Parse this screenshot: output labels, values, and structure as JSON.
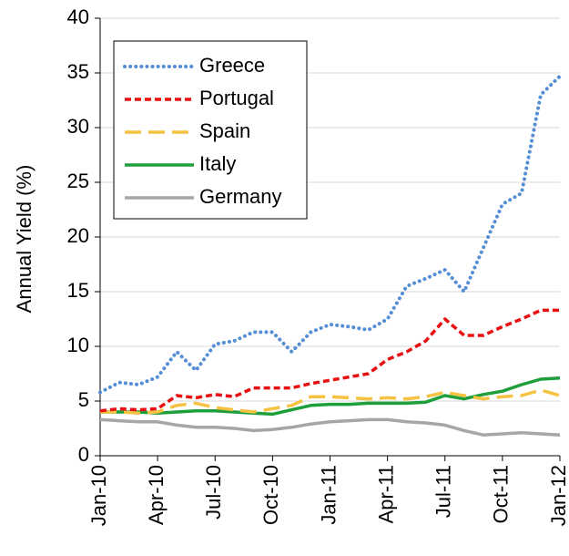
{
  "chart_data": {
    "type": "line",
    "y_label": "Annual Yield (%)",
    "x": [
      "2010-01",
      "2010-02",
      "2010-03",
      "2010-04",
      "2010-05",
      "2010-06",
      "2010-07",
      "2010-08",
      "2010-09",
      "2010-10",
      "2010-11",
      "2010-12",
      "2011-01",
      "2011-02",
      "2011-03",
      "2011-04",
      "2011-05",
      "2011-06",
      "2011-07",
      "2011-08",
      "2011-09",
      "2011-10",
      "2011-11",
      "2011-12",
      "2012-01"
    ],
    "xticks": [
      {
        "value": "2010-01",
        "label": "Jan-10"
      },
      {
        "value": "2010-04",
        "label": "Apr-10"
      },
      {
        "value": "2010-07",
        "label": "Jul-10"
      },
      {
        "value": "2010-10",
        "label": "Oct-10"
      },
      {
        "value": "2011-01",
        "label": "Jan-11"
      },
      {
        "value": "2011-04",
        "label": "Apr-11"
      },
      {
        "value": "2011-07",
        "label": "Jul-11"
      },
      {
        "value": "2011-10",
        "label": "Oct-11"
      },
      {
        "value": "2012-01",
        "label": "Jan-12"
      }
    ],
    "ylim": [
      0,
      40
    ],
    "yticks": [
      0,
      5,
      10,
      15,
      20,
      25,
      30,
      35,
      40
    ],
    "grid": true,
    "legend": "upper left",
    "series": [
      {
        "name": "Greece",
        "color": "#558ed5",
        "style": "dotted",
        "values": [
          5.8,
          6.7,
          6.5,
          7.2,
          9.5,
          7.8,
          10.2,
          10.5,
          11.3,
          11.3,
          9.5,
          11.3,
          12,
          11.8,
          11.5,
          12.5,
          15.5,
          16.2,
          17,
          15,
          19,
          23,
          24,
          33,
          34.7
        ]
      },
      {
        "name": "Portugal",
        "color": "#e81010",
        "style": "dashed",
        "values": [
          4.1,
          4.3,
          4.2,
          4.3,
          5.5,
          5.3,
          5.6,
          5.4,
          6.2,
          6.2,
          6.2,
          6.6,
          6.9,
          7.2,
          7.5,
          8.8,
          9.5,
          10.5,
          12.5,
          11,
          11,
          11.8,
          12.5,
          13.3,
          13.3
        ]
      },
      {
        "name": "Spain",
        "color": "#f5c242",
        "style": "longdash",
        "values": [
          4,
          4,
          3.9,
          4,
          4.6,
          4.8,
          4.4,
          4.2,
          4,
          4.3,
          4.6,
          5.4,
          5.4,
          5.3,
          5.2,
          5.3,
          5.2,
          5.4,
          5.8,
          5.5,
          5.2,
          5.4,
          5.5,
          6,
          5.5
        ]
      },
      {
        "name": "Italy",
        "color": "#1f9e3c",
        "style": "solid",
        "values": [
          4,
          4,
          4,
          3.9,
          4,
          4.1,
          4.1,
          4,
          3.9,
          3.8,
          4.2,
          4.6,
          4.7,
          4.7,
          4.8,
          4.8,
          4.8,
          4.9,
          5.5,
          5.2,
          5.6,
          5.9,
          6.5,
          7,
          7.1
        ]
      },
      {
        "name": "Germany",
        "color": "#a6a6a6",
        "style": "solid",
        "values": [
          3.3,
          3.2,
          3.1,
          3.1,
          2.8,
          2.6,
          2.6,
          2.5,
          2.3,
          2.4,
          2.6,
          2.9,
          3.1,
          3.2,
          3.3,
          3.3,
          3.1,
          3,
          2.8,
          2.3,
          1.9,
          2,
          2.1,
          2,
          1.9
        ]
      }
    ]
  }
}
